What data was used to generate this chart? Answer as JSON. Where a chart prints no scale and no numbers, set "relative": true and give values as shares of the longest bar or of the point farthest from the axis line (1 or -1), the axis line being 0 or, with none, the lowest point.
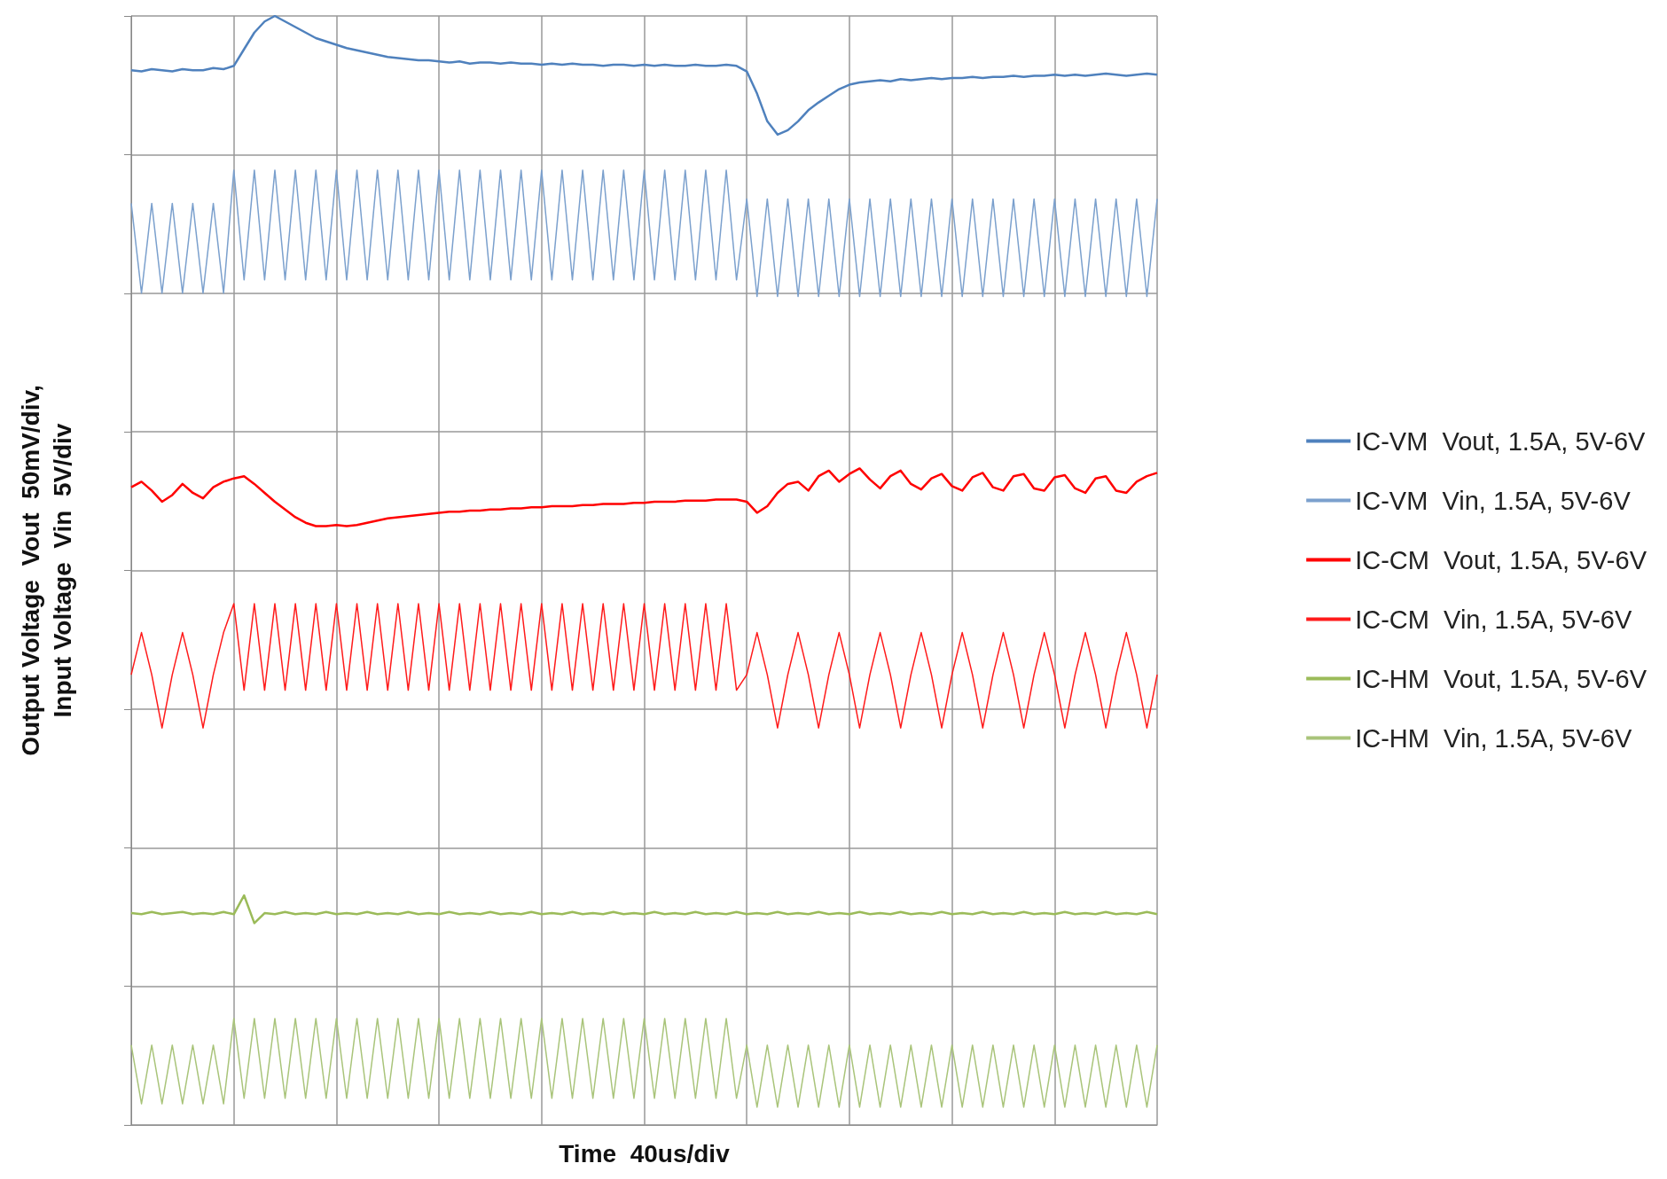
{
  "chart_data": {
    "type": "line",
    "relative": true,
    "xlabel": "Time  40us/div",
    "ylabel": "Output Voltage  Vout  50mV/div,\nInput Voltage  Vin  5V/div",
    "grid": true,
    "legend": "right",
    "marker": "none",
    "line_style": "solid",
    "categories": [
      null,
      null,
      null,
      null,
      null,
      null,
      null,
      null,
      null,
      null,
      null,
      null,
      null,
      null,
      null,
      null,
      null,
      null,
      null,
      null,
      null,
      null,
      null,
      null,
      null,
      null,
      null,
      null,
      null,
      null,
      null,
      null,
      null,
      null,
      null,
      null,
      null,
      null,
      null,
      null,
      null,
      null,
      null,
      null,
      null,
      null,
      null,
      null,
      null,
      null,
      null,
      null,
      null,
      null,
      null,
      null,
      null,
      null,
      null,
      null,
      null,
      null,
      null,
      null,
      null,
      null,
      null,
      null,
      null,
      null,
      null,
      null,
      null,
      null,
      null,
      null,
      null,
      null,
      null,
      null,
      null,
      null,
      null,
      null,
      null,
      null,
      null,
      null,
      null,
      null,
      null,
      null,
      null,
      null,
      null,
      null,
      null,
      null,
      null,
      null,
      null
    ],
    "series": [
      {
        "name": "IC-VM  Vout, 1.5A, 5V-6V",
        "color": "#4f81bd",
        "values": [
          0.951,
          0.95,
          0.952,
          0.951,
          0.95,
          0.952,
          0.951,
          0.951,
          0.953,
          0.952,
          0.955,
          0.97,
          0.985,
          0.995,
          1,
          0.995,
          0.99,
          0.985,
          0.98,
          0.977,
          0.974,
          0.971,
          0.969,
          0.967,
          0.965,
          0.963,
          0.962,
          0.961,
          0.96,
          0.96,
          0.959,
          0.958,
          0.959,
          0.957,
          0.958,
          0.958,
          0.957,
          0.958,
          0.957,
          0.957,
          0.956,
          0.957,
          0.956,
          0.957,
          0.956,
          0.956,
          0.955,
          0.956,
          0.956,
          0.955,
          0.956,
          0.955,
          0.956,
          0.955,
          0.955,
          0.956,
          0.955,
          0.955,
          0.956,
          0.955,
          0.95,
          0.93,
          0.905,
          0.893,
          0.897,
          0.905,
          0.915,
          0.922,
          0.928,
          0.934,
          0.938,
          0.94,
          0.941,
          0.942,
          0.941,
          0.943,
          0.942,
          0.943,
          0.944,
          0.943,
          0.944,
          0.944,
          0.945,
          0.944,
          0.945,
          0.945,
          0.946,
          0.945,
          0.946,
          0.946,
          0.947,
          0.946,
          0.947,
          0.946,
          0.947,
          0.948,
          0.947,
          0.946,
          0.947,
          0.948,
          0.947
        ]
      },
      {
        "name": "IC-VM  Vin, 1.5A, 5V-6V",
        "color": "#7ba0cd",
        "values": [
          0.831,
          0.75,
          0.831,
          0.75,
          0.831,
          0.75,
          0.831,
          0.75,
          0.831,
          0.75,
          0.861,
          0.762,
          0.861,
          0.762,
          0.861,
          0.762,
          0.861,
          0.762,
          0.861,
          0.762,
          0.861,
          0.762,
          0.861,
          0.762,
          0.861,
          0.762,
          0.861,
          0.762,
          0.861,
          0.762,
          0.861,
          0.762,
          0.861,
          0.762,
          0.861,
          0.762,
          0.861,
          0.762,
          0.861,
          0.762,
          0.861,
          0.762,
          0.861,
          0.762,
          0.861,
          0.762,
          0.861,
          0.762,
          0.861,
          0.762,
          0.861,
          0.762,
          0.861,
          0.762,
          0.861,
          0.762,
          0.861,
          0.762,
          0.861,
          0.762,
          0.835,
          0.747,
          0.835,
          0.747,
          0.835,
          0.747,
          0.835,
          0.747,
          0.835,
          0.747,
          0.835,
          0.747,
          0.835,
          0.747,
          0.835,
          0.747,
          0.835,
          0.747,
          0.835,
          0.747,
          0.835,
          0.747,
          0.835,
          0.747,
          0.835,
          0.747,
          0.835,
          0.747,
          0.835,
          0.747,
          0.835,
          0.747,
          0.835,
          0.747,
          0.835,
          0.747,
          0.835,
          0.747,
          0.835,
          0.747,
          0.835
        ]
      },
      {
        "name": "IC-CM  Vout, 1.5A, 5V-6V",
        "color": "#ff0000",
        "values": [
          0.575,
          0.58,
          0.572,
          0.562,
          0.568,
          0.578,
          0.57,
          0.565,
          0.575,
          0.58,
          0.583,
          0.585,
          0.578,
          0.57,
          0.562,
          0.555,
          0.548,
          0.543,
          0.54,
          0.54,
          0.541,
          0.54,
          0.541,
          0.543,
          0.545,
          0.547,
          0.548,
          0.549,
          0.55,
          0.551,
          0.552,
          0.553,
          0.553,
          0.554,
          0.554,
          0.555,
          0.555,
          0.556,
          0.556,
          0.557,
          0.557,
          0.558,
          0.558,
          0.558,
          0.559,
          0.559,
          0.56,
          0.56,
          0.56,
          0.561,
          0.561,
          0.562,
          0.562,
          0.562,
          0.563,
          0.563,
          0.563,
          0.564,
          0.564,
          0.564,
          0.562,
          0.552,
          0.558,
          0.57,
          0.578,
          0.58,
          0.572,
          0.585,
          0.59,
          0.58,
          0.587,
          0.592,
          0.582,
          0.574,
          0.585,
          0.59,
          0.578,
          0.573,
          0.583,
          0.587,
          0.576,
          0.572,
          0.584,
          0.588,
          0.575,
          0.572,
          0.585,
          0.587,
          0.574,
          0.572,
          0.584,
          0.586,
          0.574,
          0.57,
          0.583,
          0.585,
          0.572,
          0.57,
          0.58,
          0.585,
          0.588
        ]
      },
      {
        "name": "IC-CM  Vin, 1.5A, 5V-6V",
        "color": "#ff1a1a",
        "values": [
          0.406,
          0.444,
          0.406,
          0.358,
          0.406,
          0.444,
          0.406,
          0.358,
          0.406,
          0.444,
          0.47,
          0.392,
          0.47,
          0.392,
          0.47,
          0.392,
          0.47,
          0.392,
          0.47,
          0.392,
          0.47,
          0.392,
          0.47,
          0.392,
          0.47,
          0.392,
          0.47,
          0.392,
          0.47,
          0.392,
          0.47,
          0.392,
          0.47,
          0.392,
          0.47,
          0.392,
          0.47,
          0.392,
          0.47,
          0.392,
          0.47,
          0.392,
          0.47,
          0.392,
          0.47,
          0.392,
          0.47,
          0.392,
          0.47,
          0.392,
          0.47,
          0.392,
          0.47,
          0.392,
          0.47,
          0.392,
          0.47,
          0.392,
          0.47,
          0.392,
          0.406,
          0.444,
          0.406,
          0.358,
          0.406,
          0.444,
          0.406,
          0.358,
          0.406,
          0.444,
          0.406,
          0.358,
          0.406,
          0.444,
          0.406,
          0.358,
          0.406,
          0.444,
          0.406,
          0.358,
          0.406,
          0.444,
          0.406,
          0.358,
          0.406,
          0.444,
          0.406,
          0.358,
          0.406,
          0.444,
          0.406,
          0.358,
          0.406,
          0.444,
          0.406,
          0.358,
          0.406,
          0.444,
          0.406,
          0.358,
          0.406
        ]
      },
      {
        "name": "IC-HM  Vout, 1.5A, 5V-6V",
        "color": "#9bbb59",
        "values": [
          0.191,
          0.19,
          0.192,
          0.19,
          0.191,
          0.192,
          0.19,
          0.191,
          0.19,
          0.192,
          0.19,
          0.207,
          0.182,
          0.191,
          0.19,
          0.192,
          0.19,
          0.191,
          0.19,
          0.192,
          0.19,
          0.191,
          0.19,
          0.192,
          0.19,
          0.191,
          0.19,
          0.192,
          0.19,
          0.191,
          0.19,
          0.192,
          0.19,
          0.191,
          0.19,
          0.192,
          0.19,
          0.191,
          0.19,
          0.192,
          0.19,
          0.191,
          0.19,
          0.192,
          0.19,
          0.191,
          0.19,
          0.192,
          0.19,
          0.191,
          0.19,
          0.192,
          0.19,
          0.191,
          0.19,
          0.192,
          0.19,
          0.191,
          0.19,
          0.192,
          0.19,
          0.191,
          0.19,
          0.192,
          0.19,
          0.191,
          0.19,
          0.192,
          0.19,
          0.191,
          0.19,
          0.192,
          0.19,
          0.191,
          0.19,
          0.192,
          0.19,
          0.191,
          0.19,
          0.192,
          0.19,
          0.191,
          0.19,
          0.192,
          0.19,
          0.191,
          0.19,
          0.192,
          0.19,
          0.191,
          0.19,
          0.192,
          0.19,
          0.191,
          0.19,
          0.192,
          0.19,
          0.191,
          0.19,
          0.192,
          0.19
        ]
      },
      {
        "name": "IC-HM  Vin, 1.5A, 5V-6V",
        "color": "#a9c47a",
        "values": [
          0.072,
          0.019,
          0.072,
          0.019,
          0.072,
          0.019,
          0.072,
          0.019,
          0.072,
          0.019,
          0.096,
          0.024,
          0.096,
          0.024,
          0.096,
          0.024,
          0.096,
          0.024,
          0.096,
          0.024,
          0.096,
          0.024,
          0.096,
          0.024,
          0.096,
          0.024,
          0.096,
          0.024,
          0.096,
          0.024,
          0.096,
          0.024,
          0.096,
          0.024,
          0.096,
          0.024,
          0.096,
          0.024,
          0.096,
          0.024,
          0.096,
          0.024,
          0.096,
          0.024,
          0.096,
          0.024,
          0.096,
          0.024,
          0.096,
          0.024,
          0.096,
          0.024,
          0.096,
          0.024,
          0.096,
          0.024,
          0.096,
          0.024,
          0.096,
          0.024,
          0.072,
          0.016,
          0.072,
          0.016,
          0.072,
          0.016,
          0.072,
          0.016,
          0.072,
          0.016,
          0.072,
          0.016,
          0.072,
          0.016,
          0.072,
          0.016,
          0.072,
          0.016,
          0.072,
          0.016,
          0.072,
          0.016,
          0.072,
          0.016,
          0.072,
          0.016,
          0.072,
          0.016,
          0.072,
          0.016,
          0.072,
          0.016,
          0.072,
          0.016,
          0.072,
          0.016,
          0.072,
          0.016,
          0.072,
          0.016,
          0.072
        ]
      }
    ]
  }
}
